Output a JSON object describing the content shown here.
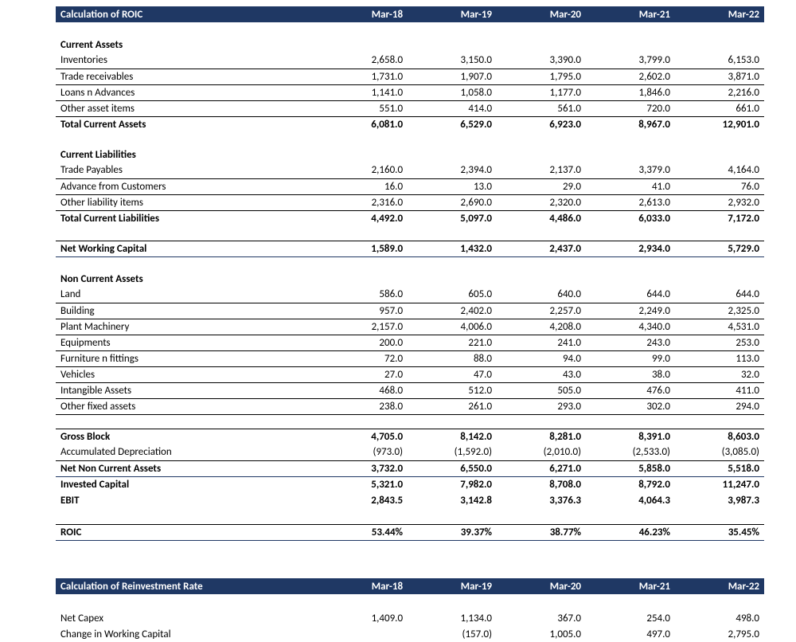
{
  "roic": {
    "header": {
      "title": "Calculation of ROIC",
      "periods": [
        "Mar-18",
        "Mar-19",
        "Mar-20",
        "Mar-21",
        "Mar-22"
      ]
    },
    "currentAssets": {
      "title": "Current Assets",
      "rows": [
        {
          "label": "Inventories",
          "v": [
            "2,658.0",
            "3,150.0",
            "3,390.0",
            "3,799.0",
            "6,153.0"
          ]
        },
        {
          "label": "Trade receivables",
          "v": [
            "1,731.0",
            "1,907.0",
            "1,795.0",
            "2,602.0",
            "3,871.0"
          ]
        },
        {
          "label": "Loans n Advances",
          "v": [
            "1,141.0",
            "1,058.0",
            "1,177.0",
            "1,846.0",
            "2,216.0"
          ]
        },
        {
          "label": "Other asset items",
          "v": [
            "551.0",
            "414.0",
            "561.0",
            "720.0",
            "661.0"
          ]
        }
      ],
      "total": {
        "label": "Total Current Assets",
        "v": [
          "6,081.0",
          "6,529.0",
          "6,923.0",
          "8,967.0",
          "12,901.0"
        ]
      }
    },
    "currentLiabilities": {
      "title": "Current Liabilities",
      "rows": [
        {
          "label": "Trade Payables",
          "v": [
            "2,160.0",
            "2,394.0",
            "2,137.0",
            "3,379.0",
            "4,164.0"
          ]
        },
        {
          "label": "Advance from Customers",
          "v": [
            "16.0",
            "13.0",
            "29.0",
            "41.0",
            "76.0"
          ]
        },
        {
          "label": "Other liability items",
          "v": [
            "2,316.0",
            "2,690.0",
            "2,320.0",
            "2,613.0",
            "2,932.0"
          ]
        }
      ],
      "total": {
        "label": "Total Current Liabilities",
        "v": [
          "4,492.0",
          "5,097.0",
          "4,486.0",
          "6,033.0",
          "7,172.0"
        ]
      }
    },
    "nwc": {
      "label": "Net Working Capital",
      "v": [
        "1,589.0",
        "1,432.0",
        "2,437.0",
        "2,934.0",
        "5,729.0"
      ]
    },
    "nonCurrentAssets": {
      "title": "Non Current Assets",
      "rows": [
        {
          "label": "Land",
          "v": [
            "586.0",
            "605.0",
            "640.0",
            "644.0",
            "644.0"
          ]
        },
        {
          "label": "Building",
          "v": [
            "957.0",
            "2,402.0",
            "2,257.0",
            "2,249.0",
            "2,325.0"
          ],
          "hash": true
        },
        {
          "label": "Plant Machinery",
          "v": [
            "2,157.0",
            "4,006.0",
            "4,208.0",
            "4,340.0",
            "4,531.0"
          ]
        },
        {
          "label": "Equipments",
          "v": [
            "200.0",
            "221.0",
            "241.0",
            "243.0",
            "253.0"
          ]
        },
        {
          "label": "Furniture n fittings",
          "v": [
            "72.0",
            "88.0",
            "94.0",
            "99.0",
            "113.0"
          ]
        },
        {
          "label": "Vehicles",
          "v": [
            "27.0",
            "47.0",
            "43.0",
            "38.0",
            "32.0"
          ]
        },
        {
          "label": "Intangible Assets",
          "v": [
            "468.0",
            "512.0",
            "505.0",
            "476.0",
            "411.0"
          ]
        },
        {
          "label": "Other fixed assets",
          "v": [
            "238.0",
            "261.0",
            "293.0",
            "302.0",
            "294.0"
          ]
        }
      ]
    },
    "grossBlock": {
      "label": "Gross Block",
      "v": [
        "4,705.0",
        "8,142.0",
        "8,281.0",
        "8,391.0",
        "8,603.0"
      ]
    },
    "accDep": {
      "label": "Accumulated Depreciation",
      "v": [
        "(973.0)",
        "(1,592.0)",
        "(2,010.0)",
        "(2,533.0)",
        "(3,085.0)"
      ]
    },
    "netNCA": {
      "label": "Net Non Current Assets",
      "v": [
        "3,732.0",
        "6,550.0",
        "6,271.0",
        "5,858.0",
        "5,518.0"
      ]
    },
    "invested": {
      "label": "Invested Capital",
      "v": [
        "5,321.0",
        "7,982.0",
        "8,708.0",
        "8,792.0",
        "11,247.0"
      ]
    },
    "ebit": {
      "label": "EBIT",
      "v": [
        "2,843.5",
        "3,142.8",
        "3,376.3",
        "4,064.3",
        "3,987.3"
      ]
    },
    "roicRow": {
      "label": "ROIC",
      "v": [
        "53.44%",
        "39.37%",
        "38.77%",
        "46.23%",
        "35.45%"
      ]
    }
  },
  "reinv": {
    "header": {
      "title": "Calculation of Reinvestment Rate",
      "periods": [
        "Mar-18",
        "Mar-19",
        "Mar-20",
        "Mar-21",
        "Mar-22"
      ]
    },
    "rows": [
      {
        "label": "Net Capex",
        "v": [
          "1,409.0",
          "1,134.0",
          "367.0",
          "254.0",
          "498.0"
        ]
      },
      {
        "label": "Change in Working Capital",
        "v": [
          "",
          "(157.0)",
          "1,005.0",
          "497.0",
          "2,795.0"
        ]
      }
    ]
  }
}
